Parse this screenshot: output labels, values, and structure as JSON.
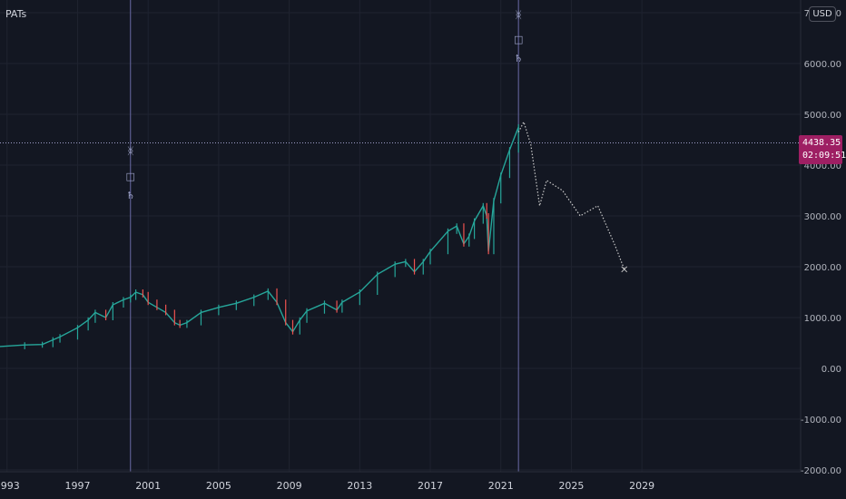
{
  "study_label": "PATs",
  "currency": "USD",
  "last_price": "4438.35",
  "countdown": "02:09:51",
  "colors": {
    "background": "#131722",
    "grid": "#1f2330",
    "candle_up": "#26a69a",
    "candle_down": "#ef5350",
    "projection": "#c8c8c8",
    "vertical_marker": "#6a6aa6",
    "price_line": "#9e9ec8",
    "badge": "#9e1f63"
  },
  "chart_data": {
    "type": "line",
    "title": "",
    "xlabel": "",
    "ylabel": "",
    "x_ticks": [
      "1993",
      "1997",
      "2001",
      "2005",
      "2009",
      "2013",
      "2017",
      "2021",
      "2025",
      "2029"
    ],
    "y_ticks": [
      "7000.00",
      "6000.00",
      "5000.00",
      "4000.00",
      "3000.00",
      "2000.00",
      "1000.00",
      "0.00",
      "-1000.00",
      "-2000.00"
    ],
    "xlim": [
      1992.6,
      2038.0
    ],
    "ylim": [
      -2000,
      7000
    ],
    "price_line": 4438.35,
    "vertical_markers": [
      2000.0,
      2022.0
    ],
    "marker_glyphs": [
      "ᛤ",
      "□",
      "♄"
    ],
    "series": [
      {
        "style": "price",
        "x": [
          1992.6,
          1994.0,
          1995.0,
          1995.6,
          1996.0,
          1997.0,
          1997.6,
          1998.0,
          1998.6,
          1999.0,
          1999.6,
          2000.0,
          2000.3,
          2000.7,
          2001.0,
          2001.5,
          2002.0,
          2002.5,
          2002.8,
          2003.2,
          2004.0,
          2005.0,
          2006.0,
          2007.0,
          2007.8,
          2008.3,
          2008.8,
          2009.2,
          2009.6,
          2010.0,
          2011.0,
          2011.7,
          2012.0,
          2013.0,
          2014.0,
          2015.0,
          2015.6,
          2016.1,
          2016.6,
          2017.0,
          2018.0,
          2018.5,
          2018.9,
          2019.2,
          2019.5,
          2020.0,
          2020.2,
          2020.3,
          2020.6,
          2021.0,
          2021.5,
          2022.0
        ],
        "y": [
          430,
          460,
          470,
          560,
          620,
          800,
          950,
          1100,
          1000,
          1250,
          1350,
          1400,
          1500,
          1450,
          1300,
          1200,
          1100,
          900,
          850,
          900,
          1100,
          1200,
          1280,
          1400,
          1520,
          1300,
          900,
          720,
          950,
          1130,
          1280,
          1150,
          1300,
          1500,
          1850,
          2050,
          2100,
          1900,
          2100,
          2300,
          2700,
          2800,
          2450,
          2600,
          2900,
          3200,
          3000,
          2300,
          3300,
          3800,
          4300,
          4750
        ]
      },
      {
        "style": "projection",
        "x": [
          2022.0,
          2022.3,
          2022.7,
          2023.2,
          2023.6,
          2024.5,
          2025.5,
          2026.5,
          2027.5,
          2028.0
        ],
        "y": [
          4650,
          4850,
          4400,
          3200,
          3700,
          3500,
          3000,
          3200,
          2400,
          1950
        ]
      }
    ]
  }
}
